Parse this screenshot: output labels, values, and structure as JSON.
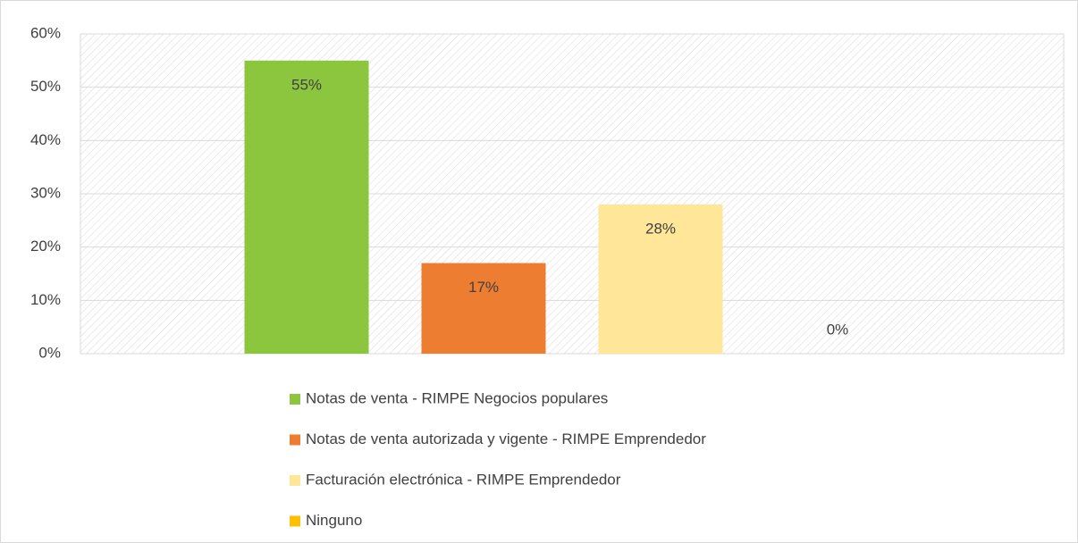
{
  "chart_data": {
    "type": "bar",
    "categories": [
      null
    ],
    "series": [
      {
        "name": "Notas de venta - RIMPE Negocios populares",
        "color": "#8cc63f",
        "values": [
          55
        ],
        "value_labels": [
          "55%"
        ]
      },
      {
        "name": "Notas de venta autorizada y vigente - RIMPE Emprendedor",
        "color": "#ed7d31",
        "values": [
          17
        ],
        "value_labels": [
          "17%"
        ]
      },
      {
        "name": "Facturación electrónica - RIMPE Emprendedor",
        "color": "#ffe699",
        "values": [
          28
        ],
        "value_labels": [
          "28%"
        ]
      },
      {
        "name": "Ninguno",
        "color": "#ffc000",
        "values": [
          0
        ],
        "value_labels": [
          "0%"
        ]
      }
    ],
    "ylim": [
      0,
      60
    ],
    "yticks": [
      {
        "value": 0,
        "label": "0%"
      },
      {
        "value": 10,
        "label": "10%"
      },
      {
        "value": 20,
        "label": "20%"
      },
      {
        "value": 30,
        "label": "30%"
      },
      {
        "value": 40,
        "label": "40%"
      },
      {
        "value": 50,
        "label": "50%"
      },
      {
        "value": 60,
        "label": "60%"
      }
    ],
    "grid": true,
    "legend": "bottom"
  }
}
